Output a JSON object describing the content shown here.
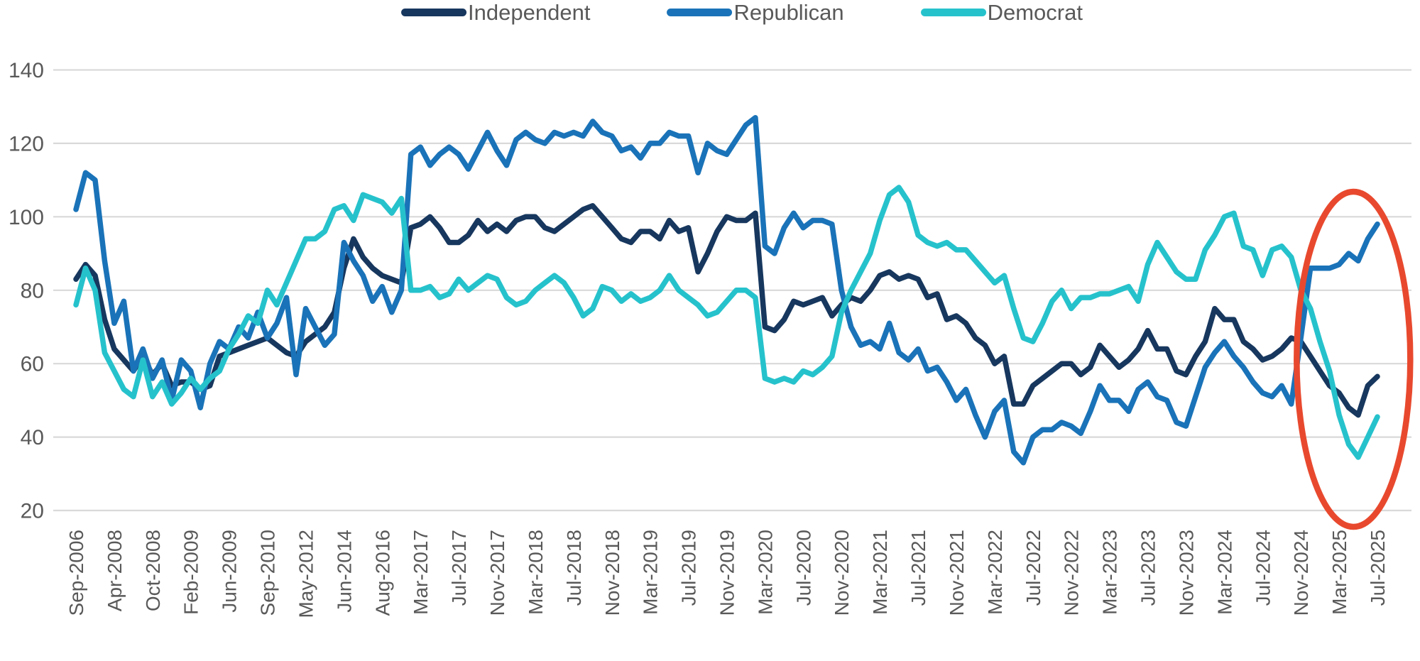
{
  "legend": {
    "items": [
      {
        "label": "Independent"
      },
      {
        "label": "Republican"
      },
      {
        "label": "Democrat"
      }
    ]
  },
  "axis": {
    "text_color": "#595959",
    "gridline_color": "#d9d9d9"
  },
  "chart_data": {
    "type": "line",
    "title": "",
    "xlabel": "",
    "ylabel": "",
    "ylim": [
      20,
      140
    ],
    "yticks": [
      20,
      40,
      60,
      80,
      100,
      120,
      140
    ],
    "grid": true,
    "legend_position": "top",
    "x_label_every_n_points": 4,
    "x_axis_labels": [
      "Sep-2006",
      "Apr-2008",
      "Oct-2008",
      "Feb-2009",
      "Jun-2009",
      "Sep-2010",
      "May-2012",
      "Jun-2014",
      "Aug-2016",
      "Mar-2017",
      "Jul-2017",
      "Nov-2017",
      "Mar-2018",
      "Jul-2018",
      "Nov-2018",
      "Mar-2019",
      "Jul-2019",
      "Nov-2019",
      "Mar-2020",
      "Jul-2020",
      "Nov-2020",
      "Mar-2021",
      "Jul-2021",
      "Nov-2021",
      "Mar-2022",
      "Jul-2022",
      "Nov-2022",
      "Mar-2023",
      "Jul-2023",
      "Nov-2023",
      "Mar-2024",
      "Jul-2024",
      "Nov-2024",
      "Mar-2025",
      "Jul-2025"
    ],
    "series": [
      {
        "name": "Independent",
        "color": "#17375e",
        "values": [
          83,
          87,
          84,
          72,
          64,
          61,
          58,
          62,
          57,
          60,
          54,
          55,
          55,
          53,
          54,
          62,
          63,
          64,
          65,
          66,
          67,
          65,
          63,
          62,
          66,
          68,
          70,
          74,
          86,
          94,
          89,
          86,
          84,
          83,
          82,
          97,
          98,
          100,
          97,
          93,
          93,
          95,
          99,
          96,
          98,
          96,
          99,
          100,
          100,
          97,
          96,
          98,
          100,
          102,
          103,
          100,
          97,
          94,
          93,
          96,
          96,
          94,
          99,
          96,
          97,
          85,
          90,
          96,
          100,
          99,
          99,
          101,
          70,
          69,
          72,
          77,
          76,
          77,
          78,
          73,
          76,
          78,
          77,
          80,
          84,
          85,
          83,
          84,
          83,
          78,
          79,
          72,
          73,
          71,
          67,
          65,
          60,
          62,
          49,
          49,
          54,
          56,
          58,
          60,
          60,
          57,
          59,
          65,
          62,
          59,
          61,
          64,
          69,
          64,
          64,
          58,
          57,
          62,
          66,
          75,
          72,
          72,
          66,
          64,
          61,
          62,
          64,
          67,
          66,
          62,
          58,
          54,
          52,
          48,
          46,
          54,
          56.5
        ]
      },
      {
        "name": "Republican",
        "color": "#1a73b8",
        "values": [
          102,
          112,
          110,
          88,
          71,
          77,
          58,
          64,
          56,
          61,
          50,
          61,
          58,
          48,
          60,
          66,
          64,
          70,
          67,
          74,
          67,
          71,
          78,
          57,
          75,
          70,
          65,
          68,
          93,
          88,
          84,
          77,
          81,
          74,
          80,
          117,
          119,
          114,
          117,
          119,
          117,
          113,
          118,
          123,
          118,
          114,
          121,
          123,
          121,
          120,
          123,
          122,
          123,
          122,
          126,
          123,
          122,
          118,
          119,
          116,
          120,
          120,
          123,
          122,
          122,
          112,
          120,
          118,
          117,
          121,
          125,
          127,
          92,
          90,
          97,
          101,
          97,
          99,
          99,
          98,
          80,
          70,
          65,
          66,
          64,
          71,
          63,
          61,
          64,
          58,
          59,
          55,
          50,
          53,
          46,
          40,
          47,
          50,
          36,
          33,
          40,
          42,
          42,
          44,
          43,
          41,
          47,
          54,
          50,
          50,
          47,
          53,
          55,
          51,
          50,
          44,
          43,
          51,
          59,
          63,
          66,
          62,
          59,
          55,
          52,
          51,
          54,
          49,
          67,
          86,
          86,
          86,
          87,
          90,
          88,
          94,
          98
        ]
      },
      {
        "name": "Democrat",
        "color": "#26c2cc",
        "values": [
          76,
          86,
          80,
          63,
          58,
          53,
          51,
          61,
          51,
          55,
          49,
          52,
          56,
          53,
          56,
          58,
          64,
          68,
          73,
          71,
          80,
          76,
          82,
          88,
          94,
          94,
          96,
          102,
          103,
          99,
          106,
          105,
          104,
          101,
          105,
          80,
          80,
          81,
          78,
          79,
          83,
          80,
          82,
          84,
          83,
          78,
          76,
          77,
          80,
          82,
          84,
          82,
          78,
          73,
          75,
          81,
          80,
          77,
          79,
          77,
          78,
          80,
          84,
          80,
          78,
          76,
          73,
          74,
          77,
          80,
          80,
          78,
          56,
          55,
          56,
          55,
          58,
          57,
          59,
          62,
          74,
          80,
          85,
          90,
          99,
          106,
          108,
          104,
          95,
          93,
          92,
          93,
          91,
          91,
          88,
          85,
          82,
          84,
          75,
          67,
          66,
          71,
          77,
          80,
          75,
          78,
          78,
          79,
          79,
          80,
          81,
          77,
          87,
          93,
          89,
          85,
          83,
          83,
          91,
          95,
          100,
          101,
          92,
          91,
          84,
          91,
          92,
          89,
          80,
          75,
          66,
          58,
          46,
          38,
          34.5,
          40,
          45.5
        ]
      }
    ],
    "annotation": {
      "type": "ellipse",
      "color": "#e8492e",
      "highlights": "Nov-2024 to Jul-2025 endpoint divergence"
    }
  }
}
